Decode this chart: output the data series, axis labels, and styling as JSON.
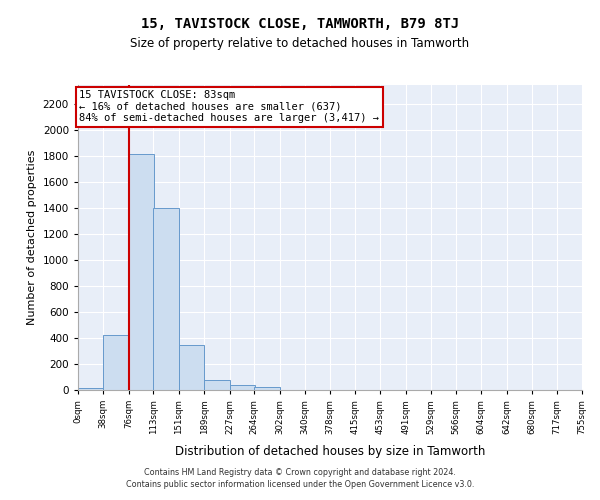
{
  "title": "15, TAVISTOCK CLOSE, TAMWORTH, B79 8TJ",
  "subtitle": "Size of property relative to detached houses in Tamworth",
  "xlabel": "Distribution of detached houses by size in Tamworth",
  "ylabel": "Number of detached properties",
  "bin_edges": [
    0,
    38,
    76,
    113,
    151,
    189,
    227,
    264,
    302,
    340,
    378,
    415,
    453,
    491,
    529,
    566,
    604,
    642,
    680,
    717,
    755
  ],
  "bar_heights": [
    15,
    420,
    1820,
    1400,
    350,
    80,
    35,
    20,
    0,
    0,
    0,
    0,
    0,
    0,
    0,
    0,
    0,
    0,
    0,
    0
  ],
  "bar_color": "#ccddf0",
  "bar_edgecolor": "#6699cc",
  "vline_x": 76,
  "annotation_text": "15 TAVISTOCK CLOSE: 83sqm\n← 16% of detached houses are smaller (637)\n84% of semi-detached houses are larger (3,417) →",
  "rect_color": "#cc0000",
  "ylim": [
    0,
    2350
  ],
  "yticks": [
    0,
    200,
    400,
    600,
    800,
    1000,
    1200,
    1400,
    1600,
    1800,
    2000,
    2200
  ],
  "background_color": "#e8eef8",
  "grid_color": "#ffffff",
  "footer_line1": "Contains HM Land Registry data © Crown copyright and database right 2024.",
  "footer_line2": "Contains public sector information licensed under the Open Government Licence v3.0."
}
